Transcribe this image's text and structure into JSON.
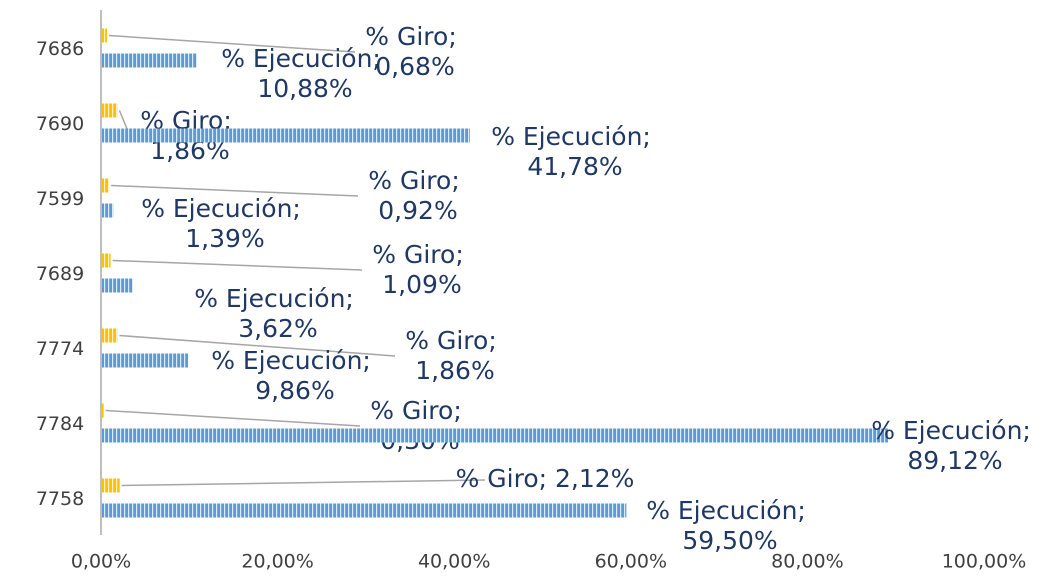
{
  "chart_data": {
    "type": "hbar",
    "categories": [
      "7686",
      "7690",
      "7599",
      "7689",
      "7774",
      "7784",
      "7758"
    ],
    "series": [
      {
        "name": "% Giro",
        "color": "#ffc000",
        "values": [
          0.68,
          1.86,
          0.92,
          1.09,
          1.86,
          0.3,
          2.12
        ],
        "value_labels": [
          "% Giro; 0,68%",
          "% Giro; 1,86%",
          "% Giro; 0,92%",
          "% Giro; 1,09%",
          "% Giro; 1,86%",
          "% Giro; 0,30%",
          "% Giro; 2,12%"
        ]
      },
      {
        "name": "% Ejecución",
        "color": "#5b9bd5",
        "values": [
          10.88,
          41.78,
          1.39,
          3.62,
          9.86,
          89.12,
          59.5
        ],
        "value_labels": [
          "% Ejecución; 10,88%",
          "% Ejecución; 41,78%",
          "% Ejecución; 1,39%",
          "% Ejecución; 3,62%",
          "% Ejecución; 9,86%",
          "% Ejecución; 89,12%",
          "% Ejecución; 59,50%"
        ]
      }
    ],
    "xlim": [
      0,
      100
    ],
    "xticks": [
      {
        "value": 0,
        "label": "0,00%"
      },
      {
        "value": 20,
        "label": "20,00%"
      },
      {
        "value": 40,
        "label": "40,00%"
      },
      {
        "value": 60,
        "label": "60,00%"
      },
      {
        "value": 80,
        "label": "80,00%"
      },
      {
        "value": 100,
        "label": "100,00%"
      }
    ]
  }
}
